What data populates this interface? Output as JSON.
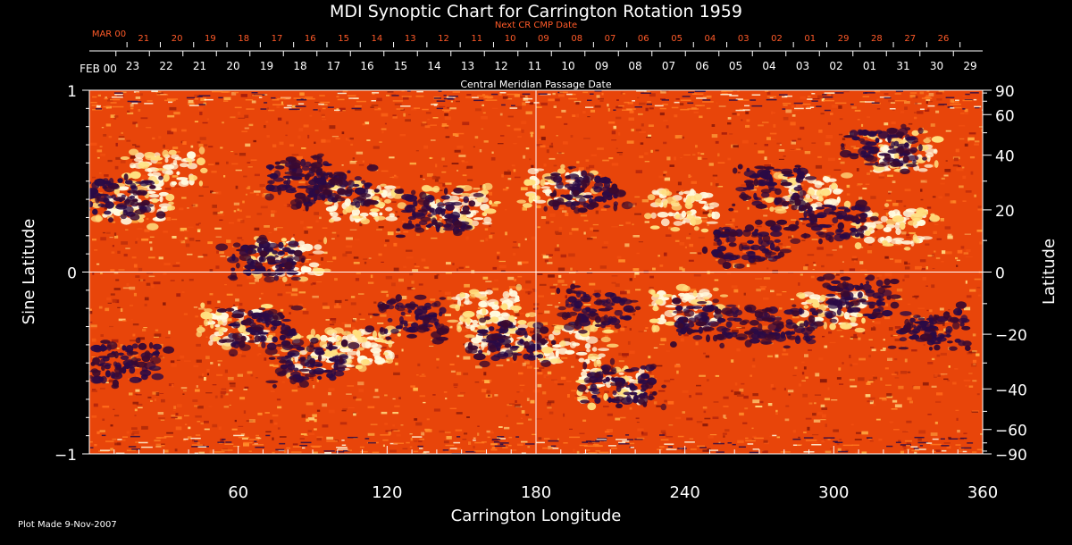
{
  "chart_data": {
    "type": "heatmap",
    "title": "MDI Synoptic Chart for Carrington Rotation 1959",
    "xlabel": "Carrington Longitude",
    "ylabel_left": "Sine Latitude",
    "ylabel_right": "Latitude",
    "xlim": [
      0,
      360
    ],
    "ylim": [
      -1,
      1
    ],
    "x_ticks": [
      60,
      120,
      180,
      240,
      300,
      360
    ],
    "y_ticks_left": [
      {
        "v": 1,
        "label": "1"
      },
      {
        "v": 0,
        "label": "0"
      },
      {
        "v": -1,
        "label": "−1"
      }
    ],
    "y_ticks_right": [
      90,
      60,
      40,
      20,
      0,
      -20,
      -40,
      -60,
      -90
    ],
    "gridlines": {
      "longitude": 180,
      "sine_latitude": 0
    },
    "top_axis_label": "Central Meridian Passage Date",
    "top_axis_month": "FEB 00",
    "top_axis_dates": [
      "23",
      "22",
      "21",
      "20",
      "19",
      "18",
      "17",
      "16",
      "15",
      "14",
      "13",
      "12",
      "11",
      "10",
      "09",
      "08",
      "07",
      "06",
      "05",
      "04",
      "03",
      "02",
      "01",
      "31",
      "30",
      "29"
    ],
    "next_cr_label": "Next CR CMP Date",
    "next_cr_month": "MAR 00",
    "next_cr_dates": [
      "21",
      "20",
      "19",
      "18",
      "17",
      "16",
      "15",
      "14",
      "13",
      "12",
      "11",
      "10",
      "09",
      "08",
      "07",
      "06",
      "05",
      "04",
      "03",
      "02",
      "01",
      "29",
      "28",
      "27",
      "26"
    ],
    "colors": {
      "background": "#000000",
      "field_low": "#2a0a45",
      "field_mid": "#e8450a",
      "field_high": "#fffbe0",
      "next_cr_text": "#ff5a28"
    },
    "negative_polarity_regions": [
      {
        "lon": 12,
        "slat": 0.41
      },
      {
        "lon": 85,
        "slat": 0.52
      },
      {
        "lon": 100,
        "slat": 0.46
      },
      {
        "lon": 70,
        "slat": 0.06
      },
      {
        "lon": 140,
        "slat": 0.32
      },
      {
        "lon": 200,
        "slat": 0.45
      },
      {
        "lon": 275,
        "slat": 0.47
      },
      {
        "lon": 300,
        "slat": 0.28
      },
      {
        "lon": 320,
        "slat": 0.68
      },
      {
        "lon": 265,
        "slat": 0.15
      },
      {
        "lon": 70,
        "slat": -0.32
      },
      {
        "lon": 90,
        "slat": -0.5
      },
      {
        "lon": 130,
        "slat": -0.25
      },
      {
        "lon": 170,
        "slat": -0.38
      },
      {
        "lon": 205,
        "slat": -0.2
      },
      {
        "lon": 215,
        "slat": -0.62
      },
      {
        "lon": 250,
        "slat": -0.28
      },
      {
        "lon": 280,
        "slat": -0.3
      },
      {
        "lon": 310,
        "slat": -0.15
      },
      {
        "lon": 340,
        "slat": -0.3
      },
      {
        "lon": 15,
        "slat": -0.5
      }
    ],
    "positive_polarity_regions": [
      {
        "lon": 18,
        "slat": 0.37
      },
      {
        "lon": 30,
        "slat": 0.55
      },
      {
        "lon": 110,
        "slat": 0.38
      },
      {
        "lon": 150,
        "slat": 0.35
      },
      {
        "lon": 190,
        "slat": 0.47
      },
      {
        "lon": 240,
        "slat": 0.35
      },
      {
        "lon": 290,
        "slat": 0.44
      },
      {
        "lon": 325,
        "slat": 0.25
      },
      {
        "lon": 80,
        "slat": 0.08
      },
      {
        "lon": 60,
        "slat": -0.3
      },
      {
        "lon": 95,
        "slat": -0.45
      },
      {
        "lon": 110,
        "slat": -0.42
      },
      {
        "lon": 160,
        "slat": -0.2
      },
      {
        "lon": 165,
        "slat": -0.35
      },
      {
        "lon": 195,
        "slat": -0.4
      },
      {
        "lon": 210,
        "slat": -0.62
      },
      {
        "lon": 240,
        "slat": -0.2
      },
      {
        "lon": 300,
        "slat": -0.2
      },
      {
        "lon": 330,
        "slat": 0.65
      }
    ]
  },
  "footer": {
    "plot_made": "Plot Made  9-Nov-2007"
  }
}
